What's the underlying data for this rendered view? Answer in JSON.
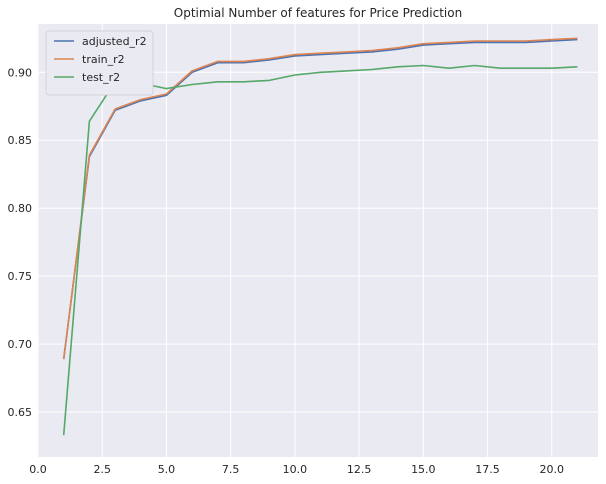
{
  "chart_data": {
    "type": "line",
    "title": "Optimial Number of features for Price Prediction",
    "xlabel": "",
    "ylabel": "",
    "xlim": [
      0.0,
      21.8
    ],
    "ylim": [
      0.617,
      0.9355
    ],
    "xticks": [
      0.0,
      2.5,
      5.0,
      7.5,
      10.0,
      12.5,
      15.0,
      17.5,
      20.0
    ],
    "xtick_labels": [
      "0.0",
      "2.5",
      "5.0",
      "7.5",
      "10.0",
      "12.5",
      "15.0",
      "17.5",
      "20.0"
    ],
    "yticks": [
      0.65,
      0.7,
      0.75,
      0.8,
      0.85,
      0.9
    ],
    "ytick_labels": [
      "0.65",
      "0.70",
      "0.75",
      "0.80",
      "0.85",
      "0.90"
    ],
    "grid": true,
    "legend_position": "top-left",
    "background_color": "#eaeaf2",
    "grid_color": "#ffffff",
    "x": [
      1,
      2,
      3,
      4,
      5,
      6,
      7,
      8,
      9,
      10,
      11,
      12,
      13,
      14,
      15,
      16,
      17,
      18,
      19,
      20,
      21
    ],
    "series": [
      {
        "name": "adjusted_r2",
        "color": "#4c72b0",
        "values": [
          0.689,
          0.838,
          0.872,
          0.879,
          0.883,
          0.9,
          0.907,
          0.907,
          0.909,
          0.912,
          0.913,
          0.914,
          0.915,
          0.917,
          0.92,
          0.921,
          0.922,
          0.922,
          0.922,
          0.923,
          0.924
        ]
      },
      {
        "name": "train_r2",
        "color": "#dd8452",
        "values": [
          0.689,
          0.839,
          0.873,
          0.88,
          0.884,
          0.901,
          0.908,
          0.908,
          0.91,
          0.913,
          0.914,
          0.915,
          0.916,
          0.918,
          0.921,
          0.922,
          0.923,
          0.923,
          0.923,
          0.924,
          0.925
        ]
      },
      {
        "name": "test_r2",
        "color": "#55a868",
        "values": [
          0.633,
          0.864,
          0.893,
          0.892,
          0.888,
          0.891,
          0.893,
          0.893,
          0.894,
          0.898,
          0.9,
          0.901,
          0.902,
          0.904,
          0.905,
          0.903,
          0.905,
          0.903,
          0.903,
          0.903,
          0.904
        ]
      }
    ]
  }
}
